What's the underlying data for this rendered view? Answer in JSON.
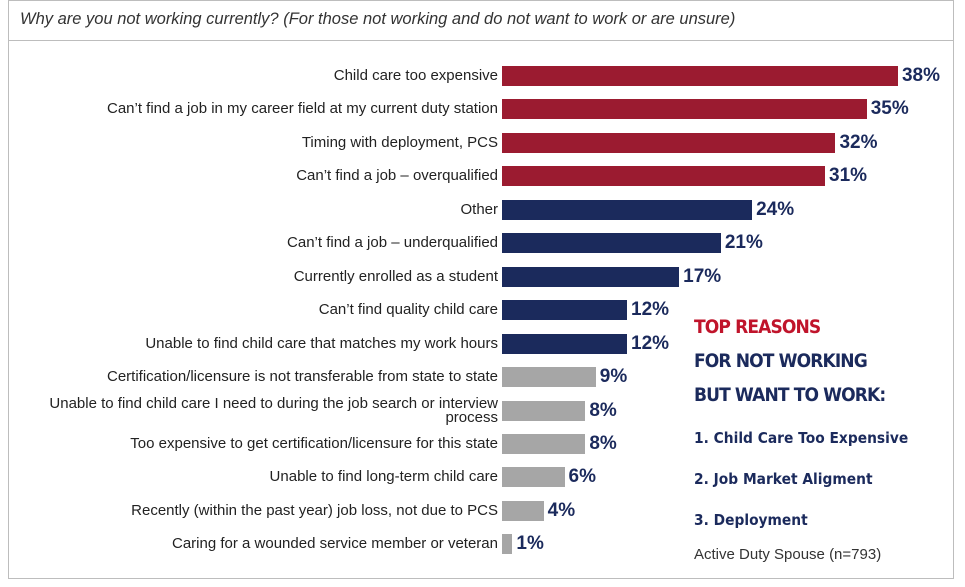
{
  "chart_data": {
    "type": "bar",
    "orientation": "horizontal",
    "title": "Why are you not working currently? (For those not working and do not want to work or are unsure)",
    "categories": [
      "Child care too expensive",
      "Can’t find a job in my career field at my current duty station",
      "Timing with deployment, PCS",
      "Can’t find a job – overqualified",
      "Other",
      "Can’t find a job – underqualified",
      "Currently enrolled as a student",
      "Can’t find quality child care",
      "Unable to find child care that matches my work hours",
      "Certification/licensure is not transferable from state to state",
      "Unable to find child care I need to during the job search or interview process",
      "Too expensive to get certification/licensure for this state",
      "Unable to find long-term child care",
      "Recently (within the past year) job loss, not due to PCS",
      "Caring for a wounded service member or veteran"
    ],
    "values": [
      38,
      35,
      32,
      31,
      24,
      21,
      17,
      12,
      12,
      9,
      8,
      8,
      6,
      4,
      1
    ],
    "value_labels": [
      "38%",
      "35%",
      "32%",
      "31%",
      "24%",
      "21%",
      "17%",
      "12%",
      "12%",
      "9%",
      "8%",
      "8%",
      "6%",
      "4%",
      "1%"
    ],
    "colors": [
      "#9b1b30",
      "#9b1b30",
      "#9b1b30",
      "#9b1b30",
      "#1b2a5c",
      "#1b2a5c",
      "#1b2a5c",
      "#1b2a5c",
      "#1b2a5c",
      "#a6a6a6",
      "#a6a6a6",
      "#a6a6a6",
      "#a6a6a6",
      "#a6a6a6",
      "#a6a6a6"
    ],
    "annotations": [
      "TOP REASONS",
      "FOR NOT WORKING",
      "BUT WANT TO WORK:",
      "1. Child Care Too Expensive",
      "2. Job Market Aligment",
      "3. Deployment",
      "Active Duty Spouse (n=793)"
    ]
  }
}
